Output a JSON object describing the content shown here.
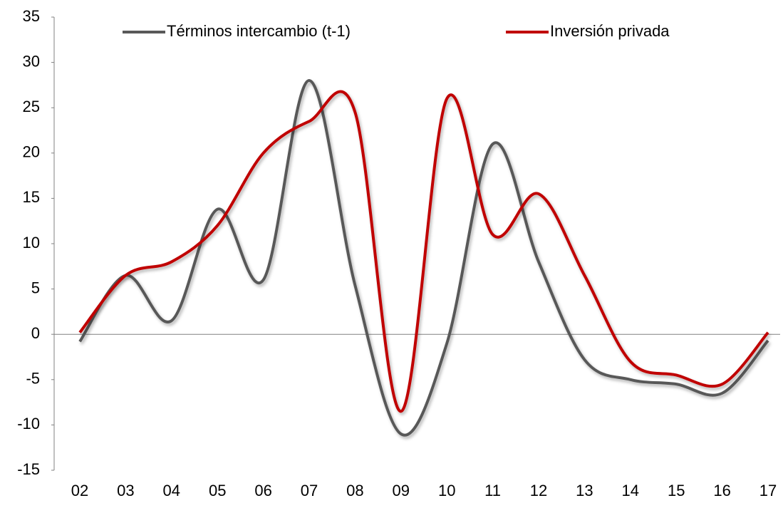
{
  "chart_data": {
    "type": "line",
    "categories": [
      "02",
      "03",
      "04",
      "05",
      "06",
      "07",
      "08",
      "09",
      "10",
      "11",
      "12",
      "13",
      "14",
      "15",
      "16",
      "17"
    ],
    "series": [
      {
        "name": "Términos intercambio (t-1)",
        "color": "#595959",
        "values": [
          -0.8,
          6.5,
          1.5,
          13.8,
          6,
          28,
          5.4,
          -11,
          -1,
          21,
          8,
          -2.8,
          -5,
          -5.5,
          -6.5,
          -0.7
        ]
      },
      {
        "name": "Inversión privada",
        "color": "#c00000",
        "values": [
          0.2,
          6.5,
          8,
          12,
          20,
          23.5,
          24.5,
          -8.5,
          26,
          11,
          15.5,
          6.5,
          -3,
          -4.5,
          -5.5,
          0.2
        ]
      }
    ],
    "ylim": [
      -15,
      35
    ],
    "yticks": [
      -15,
      -10,
      -5,
      0,
      5,
      10,
      15,
      20,
      25,
      30,
      35
    ],
    "grid": false
  }
}
